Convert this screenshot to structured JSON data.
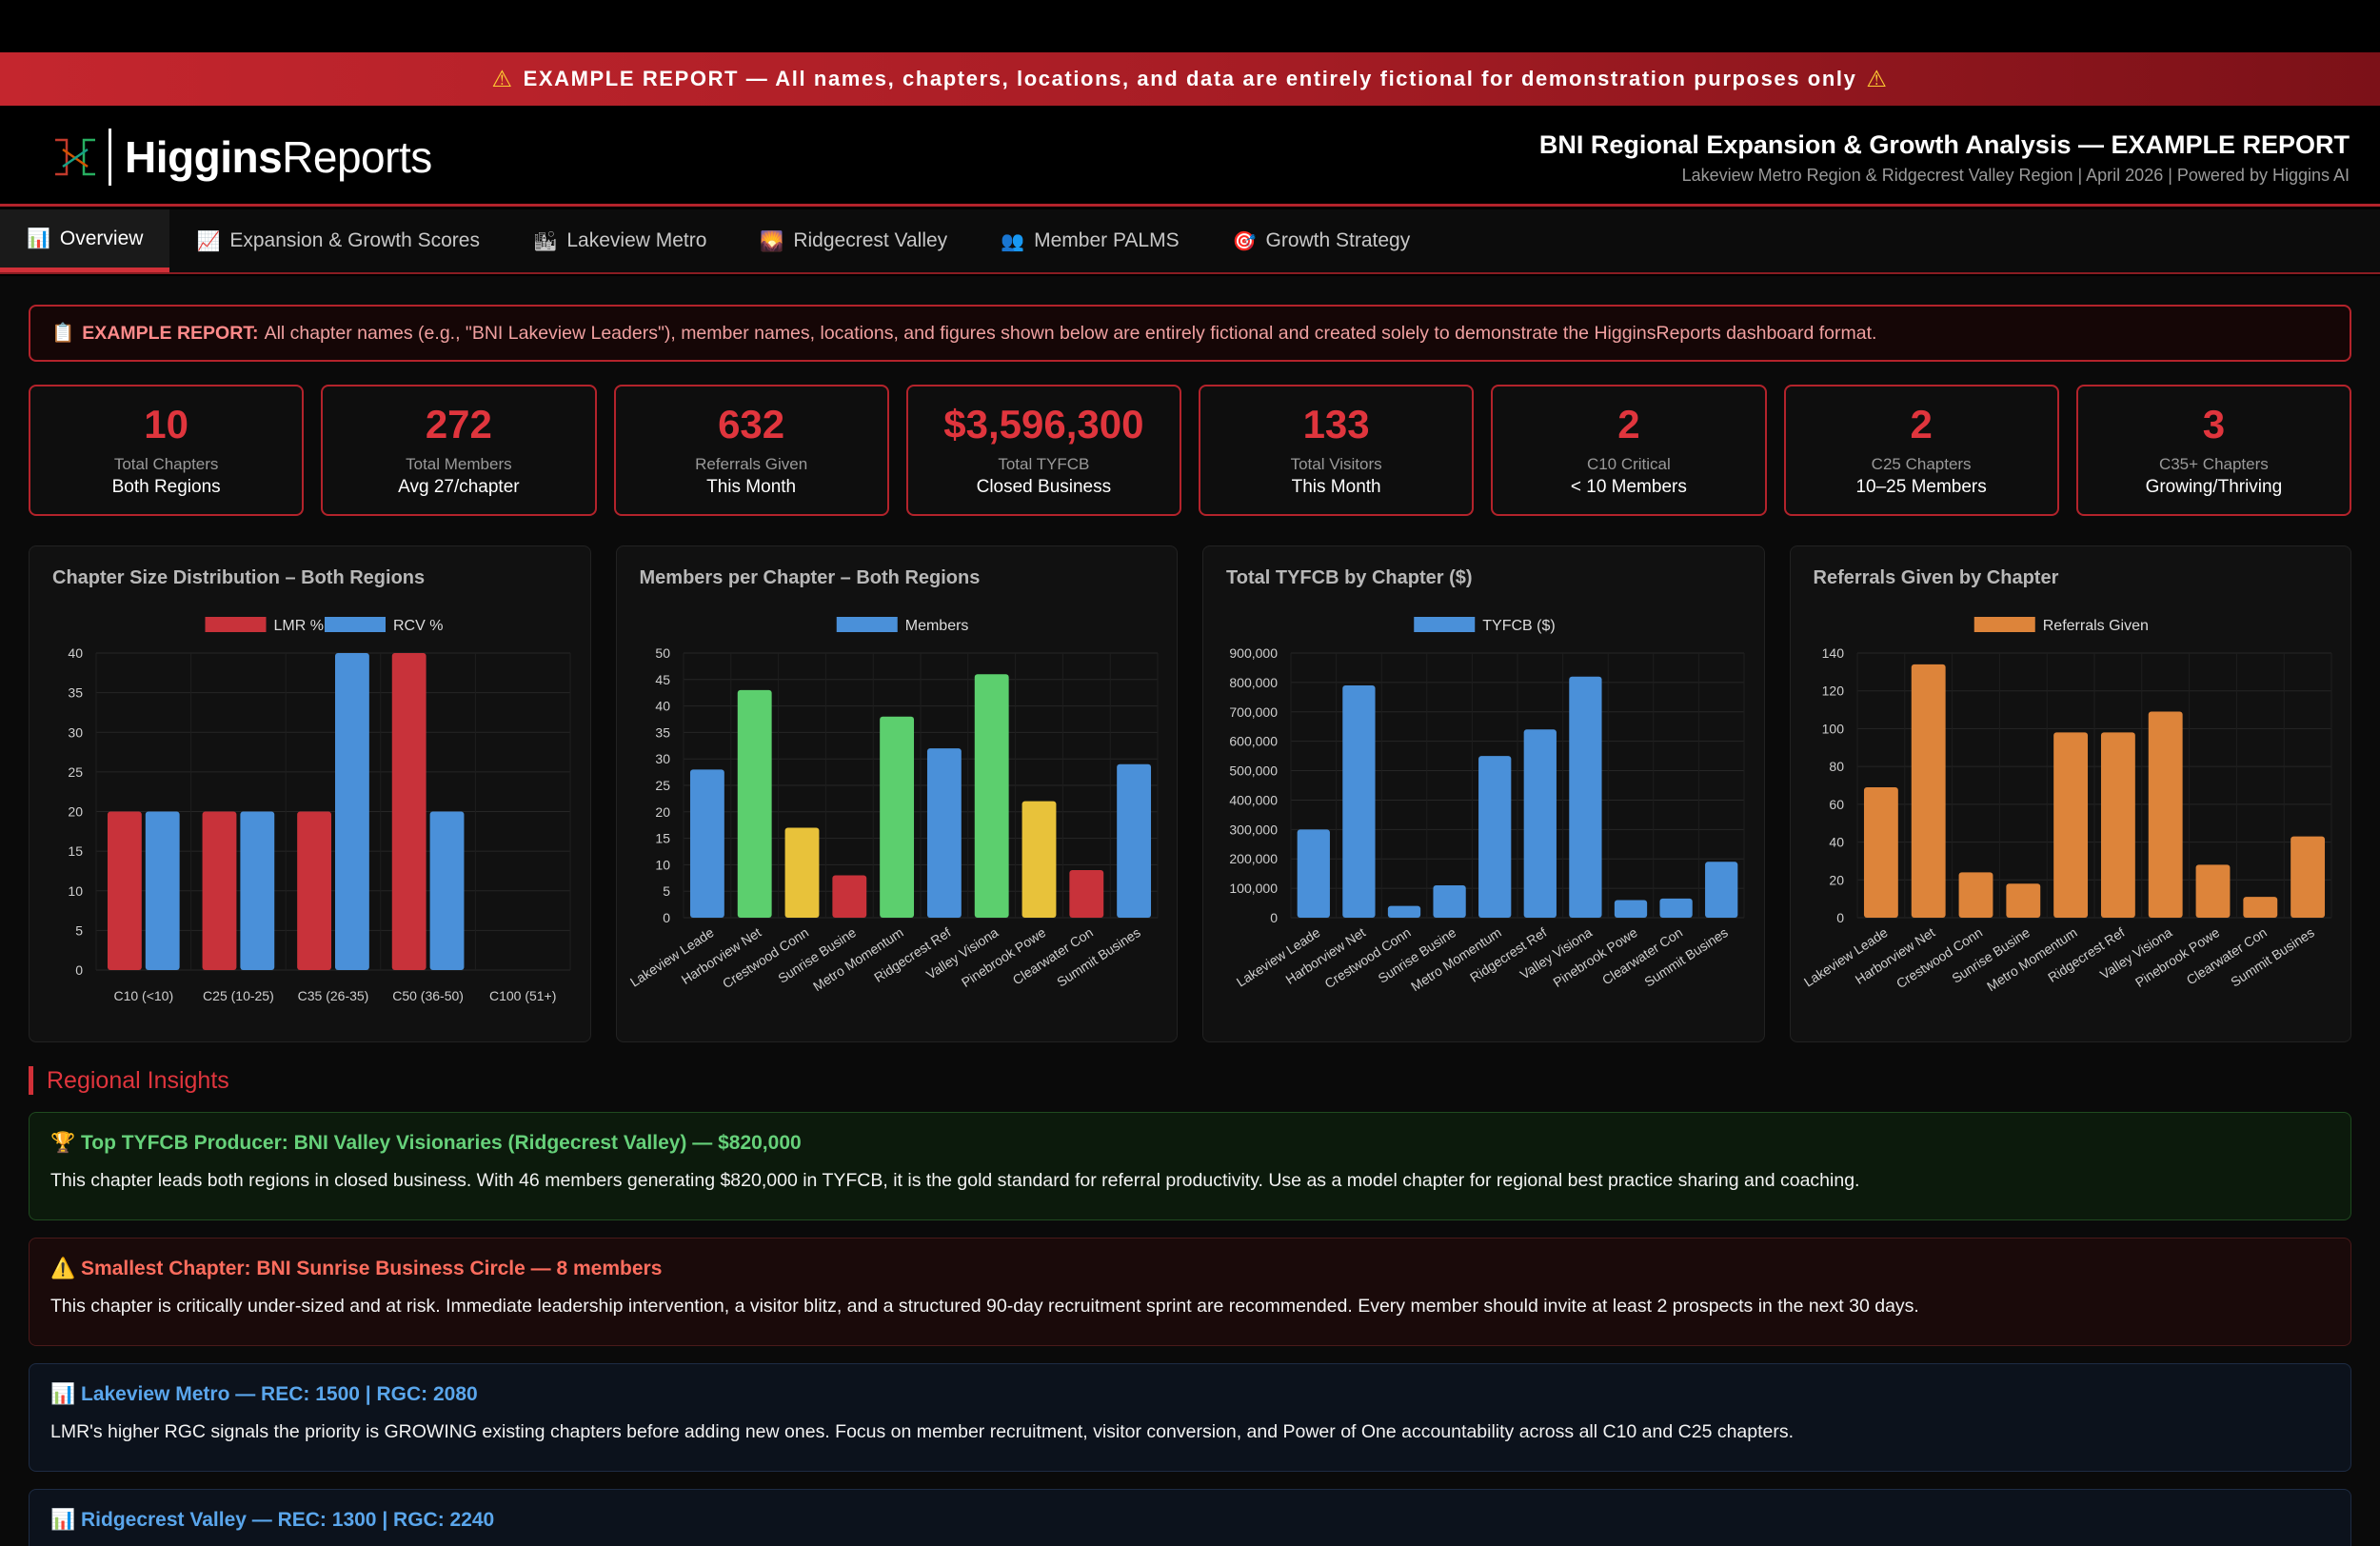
{
  "banner": {
    "text": "EXAMPLE REPORT — All names, chapters, locations, and data are entirely fictional for demonstration purposes only",
    "icon": "warning-icon"
  },
  "header": {
    "logo_bold": "Higgins",
    "logo_light": "Reports",
    "title": "BNI Regional Expansion & Growth Analysis — EXAMPLE REPORT",
    "subtitle": "Lakeview Metro Region & Ridgecrest Valley Region | April 2026 | Powered by Higgins AI"
  },
  "tabs": [
    {
      "label": "Overview",
      "icon": "📊",
      "active": true
    },
    {
      "label": "Expansion & Growth Scores",
      "icon": "📈",
      "active": false
    },
    {
      "label": "Lakeview Metro",
      "icon": "🏙",
      "active": false
    },
    {
      "label": "Ridgecrest Valley",
      "icon": "🌄",
      "active": false
    },
    {
      "label": "Member PALMS",
      "icon": "👥",
      "active": false
    },
    {
      "label": "Growth Strategy",
      "icon": "🎯",
      "active": false
    }
  ],
  "notice": {
    "icon": "📋",
    "label": "EXAMPLE REPORT:",
    "text": "All chapter names (e.g., \"BNI Lakeview Leaders\"), member names, locations, and figures shown below are entirely fictional and created solely to demonstrate the HigginsReports dashboard format."
  },
  "kpis": [
    {
      "value": "10",
      "label": "Total Chapters",
      "sub": "Both Regions"
    },
    {
      "value": "272",
      "label": "Total Members",
      "sub": "Avg 27/chapter"
    },
    {
      "value": "632",
      "label": "Referrals Given",
      "sub": "This Month"
    },
    {
      "value": "$3,596,300",
      "label": "Total TYFCB",
      "sub": "Closed Business"
    },
    {
      "value": "133",
      "label": "Total Visitors",
      "sub": "This Month"
    },
    {
      "value": "2",
      "label": "C10 Critical",
      "sub": "< 10 Members"
    },
    {
      "value": "2",
      "label": "C25 Chapters",
      "sub": "10–25 Members"
    },
    {
      "value": "3",
      "label": "C35+ Chapters",
      "sub": "Growing/Thriving"
    }
  ],
  "chart_data": [
    {
      "type": "bar",
      "title": "Chapter Size Distribution – Both Regions",
      "categories": [
        "C10 (<10)",
        "C25 (10-25)",
        "C35 (26-35)",
        "C50 (36-50)",
        "C100 (51+)"
      ],
      "series": [
        {
          "name": "LMR %",
          "color": "#c8323a",
          "values": [
            20,
            20,
            20,
            40,
            0
          ]
        },
        {
          "name": "RCV %",
          "color": "#4a90d9",
          "values": [
            20,
            20,
            40,
            20,
            0
          ]
        }
      ],
      "ylim": [
        0,
        40
      ],
      "yticks": [
        "0",
        "5",
        "10",
        "15",
        "20",
        "25",
        "30",
        "35",
        "40"
      ],
      "rotate_labels": false
    },
    {
      "type": "bar",
      "title": "Members per Chapter – Both Regions",
      "categories": [
        "Lakeview Leade",
        "Harborview Net",
        "Crestwood Conn",
        "Sunrise Busine",
        "Metro Momentum",
        "Ridgecrest Ref",
        "Valley Visiona",
        "Pinebrook Powe",
        "Clearwater Con",
        "Summit Busines"
      ],
      "series": [
        {
          "name": "Members",
          "color": "#4a90d9",
          "values": [
            28,
            43,
            17,
            8,
            38,
            32,
            46,
            22,
            9,
            29
          ]
        }
      ],
      "bar_colors": [
        "#4a90d9",
        "#5ccf6e",
        "#e8c23a",
        "#c8323a",
        "#5ccf6e",
        "#4a90d9",
        "#5ccf6e",
        "#e8c23a",
        "#c8323a",
        "#4a90d9"
      ],
      "ylim": [
        0,
        50
      ],
      "yticks": [
        "0",
        "5",
        "10",
        "15",
        "20",
        "25",
        "30",
        "35",
        "40",
        "45",
        "50"
      ],
      "rotate_labels": true
    },
    {
      "type": "bar",
      "title": "Total TYFCB by Chapter ($)",
      "categories": [
        "Lakeview Leade",
        "Harborview Net",
        "Crestwood Conn",
        "Sunrise Busine",
        "Metro Momentum",
        "Ridgecrest Ref",
        "Valley Visiona",
        "Pinebrook Powe",
        "Clearwater Con",
        "Summit Busines"
      ],
      "series": [
        {
          "name": "TYFCB ($)",
          "color": "#4a90d9",
          "values": [
            300000,
            790000,
            40000,
            110000,
            550000,
            640000,
            820000,
            60000,
            65000,
            190000
          ]
        }
      ],
      "ylim": [
        0,
        900000
      ],
      "yticks": [
        "0",
        "100,000",
        "200,000",
        "300,000",
        "400,000",
        "500,000",
        "600,000",
        "700,000",
        "800,000",
        "900,000"
      ],
      "rotate_labels": true
    },
    {
      "type": "bar",
      "title": "Referrals Given by Chapter",
      "categories": [
        "Lakeview Leade",
        "Harborview Net",
        "Crestwood Conn",
        "Sunrise Busine",
        "Metro Momentum",
        "Ridgecrest Ref",
        "Valley Visiona",
        "Pinebrook Powe",
        "Clearwater Con",
        "Summit Busines"
      ],
      "series": [
        {
          "name": "Referrals Given",
          "color": "#dd843a",
          "values": [
            69,
            134,
            24,
            18,
            98,
            98,
            109,
            28,
            11,
            43
          ]
        }
      ],
      "ylim": [
        0,
        140
      ],
      "yticks": [
        "0",
        "20",
        "40",
        "60",
        "80",
        "100",
        "120",
        "140"
      ],
      "rotate_labels": true
    }
  ],
  "insights_title": "Regional Insights",
  "insights": [
    {
      "icon": "🏆",
      "title": "Top TYFCB Producer: BNI Valley Visionaries (Ridgecrest Valley) — $820,000",
      "body": "This chapter leads both regions in closed business. With 46 members generating $820,000 in TYFCB, it is the gold standard for referral productivity. Use as a model chapter for regional best practice sharing and coaching."
    },
    {
      "icon": "⚠️",
      "title": "Smallest Chapter: BNI Sunrise Business Circle — 8 members",
      "body": "This chapter is critically under-sized and at risk. Immediate leadership intervention, a visitor blitz, and a structured 90-day recruitment sprint are recommended. Every member should invite at least 2 prospects in the next 30 days."
    },
    {
      "icon": "📊",
      "title": "Lakeview Metro — REC: 1500 | RGC: 2080",
      "body": "LMR's higher RGC signals the priority is GROWING existing chapters before adding new ones. Focus on member recruitment, visitor conversion, and Power of One accountability across all C10 and C25 chapters."
    },
    {
      "icon": "📊",
      "title": "Ridgecrest Valley — REC: 1300 | RGC: 2240",
      "body": ""
    }
  ]
}
